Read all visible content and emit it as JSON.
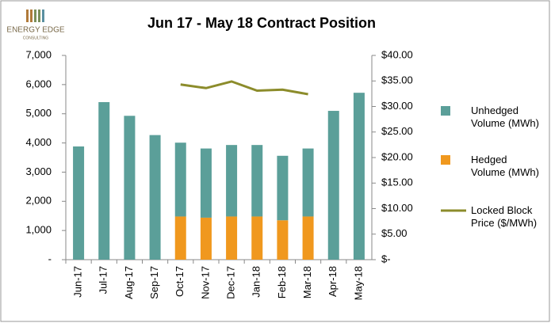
{
  "logo": {
    "name": "ENERGY EDGE",
    "tagline": "CONSULTING"
  },
  "chart_data": {
    "type": "bar",
    "stacked": true,
    "title": "Jun 17 - May 18 Contract Position",
    "categories": [
      "Jun-17",
      "Jul-17",
      "Aug-17",
      "Sep-17",
      "Oct-17",
      "Nov-17",
      "Dec-17",
      "Jan-18",
      "Feb-18",
      "Mar-18",
      "Apr-18",
      "May-18"
    ],
    "series": [
      {
        "name": "Unhedged Volume (MWh)",
        "color": "#5b9f99",
        "values": [
          3880,
          5400,
          4930,
          4270,
          2530,
          2370,
          2450,
          2450,
          2210,
          2330,
          5100,
          5720
        ]
      },
      {
        "name": "Hedged Volume (MWh)",
        "color": "#f0981e",
        "values": [
          null,
          null,
          null,
          null,
          1480,
          1440,
          1480,
          1480,
          1350,
          1480,
          null,
          null
        ]
      },
      {
        "name": "Locked Block Price ($/MWh)",
        "color": "#8c8c2b",
        "type": "line",
        "axis": "y2",
        "values": [
          null,
          null,
          null,
          null,
          34.3,
          33.6,
          34.9,
          33.1,
          33.3,
          32.4,
          null,
          null
        ]
      }
    ],
    "ylim": [
      0,
      7000
    ],
    "yticks": [
      {
        "value": 0,
        "label": "-"
      },
      {
        "value": 1000,
        "label": "1,000"
      },
      {
        "value": 2000,
        "label": "2,000"
      },
      {
        "value": 3000,
        "label": "3,000"
      },
      {
        "value": 4000,
        "label": "4,000"
      },
      {
        "value": 5000,
        "label": "5,000"
      },
      {
        "value": 6000,
        "label": "6,000"
      },
      {
        "value": 7000,
        "label": "7,000"
      }
    ],
    "y2lim": [
      0,
      40
    ],
    "y2ticks": [
      {
        "value": 0,
        "label": "$-"
      },
      {
        "value": 5,
        "label": "$5.00"
      },
      {
        "value": 10,
        "label": "$10.00"
      },
      {
        "value": 15,
        "label": "$15.00"
      },
      {
        "value": 20,
        "label": "$20.00"
      },
      {
        "value": 25,
        "label": "$25.00"
      },
      {
        "value": 30,
        "label": "$30.00"
      },
      {
        "value": 35,
        "label": "$35.00"
      },
      {
        "value": 40,
        "label": "$40.00"
      }
    ],
    "legend": "right"
  }
}
